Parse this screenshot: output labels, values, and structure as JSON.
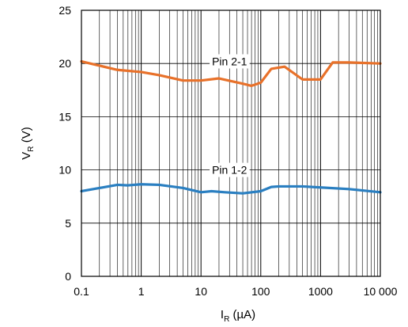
{
  "chart_data": {
    "type": "line",
    "x_scale": "log",
    "xlim": [
      0.1,
      10000
    ],
    "ylim": [
      0,
      25
    ],
    "x_ticks": [
      0.1,
      1,
      10,
      100,
      1000,
      10000
    ],
    "x_tick_labels": [
      "0.1",
      "1",
      "10",
      "100",
      "1000",
      "10 000"
    ],
    "y_ticks": [
      0,
      5,
      10,
      15,
      20,
      25
    ],
    "y_tick_labels": [
      "0",
      "5",
      "10",
      "15",
      "20",
      "25"
    ],
    "xlabel_main": "I",
    "xlabel_sub": "R",
    "xlabel_unit": " (µA)",
    "ylabel_main": "V",
    "ylabel_sub": "R",
    "ylabel_unit": " (V)",
    "grid": true,
    "series": [
      {
        "name": "Pin 2-1",
        "color": "#e8712a",
        "label_at": [
          30,
          20.2
        ],
        "points": [
          [
            0.1,
            20.2
          ],
          [
            0.2,
            19.8
          ],
          [
            0.4,
            19.4
          ],
          [
            1,
            19.2
          ],
          [
            2,
            18.9
          ],
          [
            5,
            18.4
          ],
          [
            10,
            18.4
          ],
          [
            20,
            18.6
          ],
          [
            50,
            18.1
          ],
          [
            70,
            17.9
          ],
          [
            100,
            18.2
          ],
          [
            150,
            19.5
          ],
          [
            250,
            19.7
          ],
          [
            500,
            18.5
          ],
          [
            1000,
            18.5
          ],
          [
            1600,
            20.1
          ],
          [
            3000,
            20.1
          ],
          [
            10000,
            20.0
          ]
        ]
      },
      {
        "name": "Pin 1-2",
        "color": "#2a7fc1",
        "label_at": [
          30,
          10.0
        ],
        "points": [
          [
            0.1,
            8.0
          ],
          [
            0.2,
            8.3
          ],
          [
            0.4,
            8.6
          ],
          [
            0.6,
            8.55
          ],
          [
            1,
            8.65
          ],
          [
            2,
            8.6
          ],
          [
            5,
            8.3
          ],
          [
            10,
            7.9
          ],
          [
            15,
            8.0
          ],
          [
            25,
            7.9
          ],
          [
            50,
            7.8
          ],
          [
            100,
            8.0
          ],
          [
            150,
            8.4
          ],
          [
            200,
            8.45
          ],
          [
            500,
            8.45
          ],
          [
            1000,
            8.35
          ],
          [
            3000,
            8.2
          ],
          [
            10000,
            7.9
          ]
        ]
      }
    ]
  }
}
